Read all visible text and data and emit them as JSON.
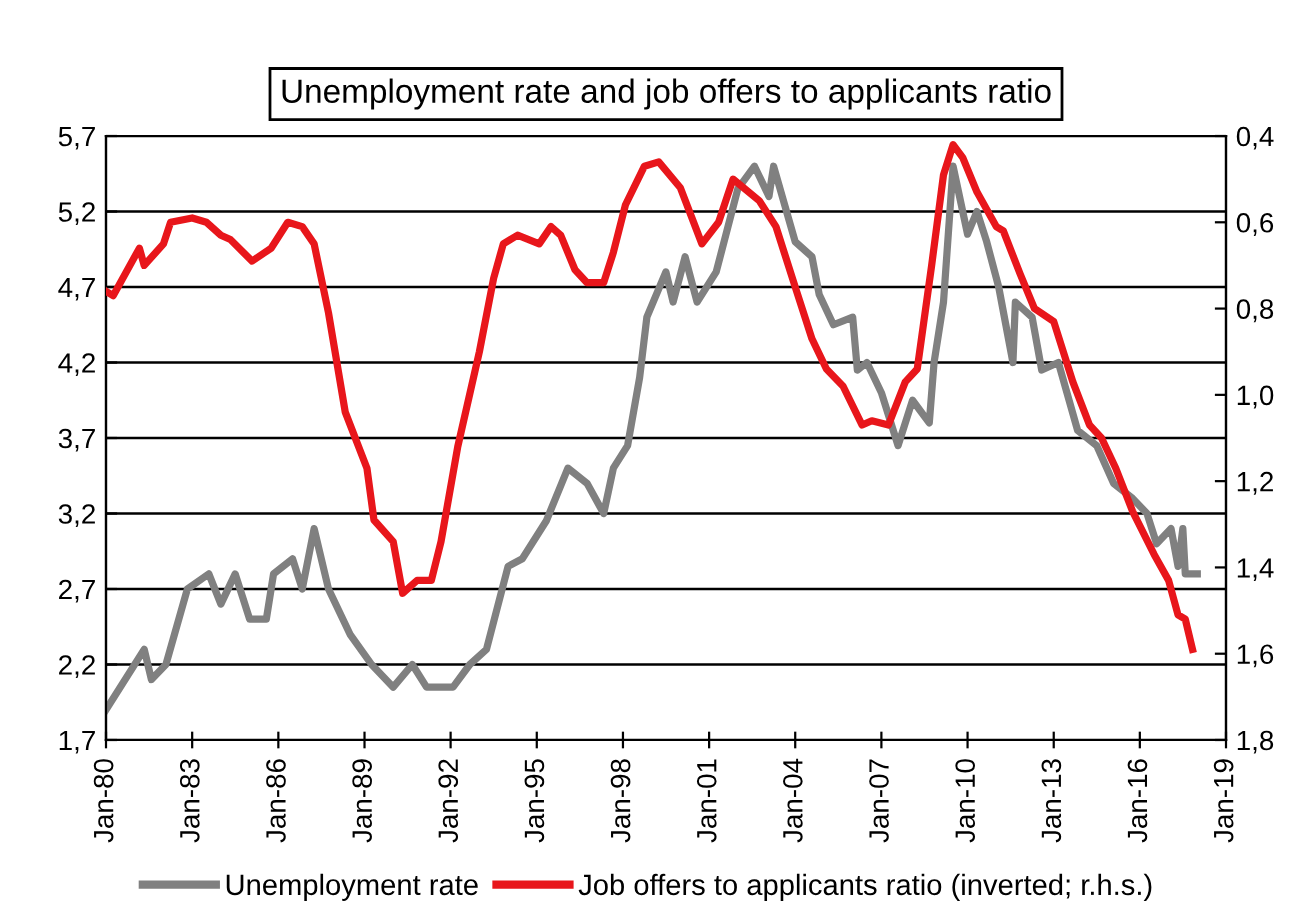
{
  "chart_data": {
    "type": "line",
    "title": "Unemployment rate and job offers to applicants ratio",
    "xlim": [
      "1980-01",
      "2019-01"
    ],
    "xticks": [
      {
        "value": "1980-01",
        "label": "Jan-80"
      },
      {
        "value": "1983-01",
        "label": "Jan-83"
      },
      {
        "value": "1986-01",
        "label": "Jan-86"
      },
      {
        "value": "1989-01",
        "label": "Jan-89"
      },
      {
        "value": "1992-01",
        "label": "Jan-92"
      },
      {
        "value": "1995-01",
        "label": "Jan-95"
      },
      {
        "value": "1998-01",
        "label": "Jan-98"
      },
      {
        "value": "2001-01",
        "label": "Jan-01"
      },
      {
        "value": "2004-01",
        "label": "Jan-04"
      },
      {
        "value": "2007-01",
        "label": "Jan-07"
      },
      {
        "value": "2010-01",
        "label": "Jan-10"
      },
      {
        "value": "2013-01",
        "label": "Jan-13"
      },
      {
        "value": "2016-01",
        "label": "Jan-16"
      },
      {
        "value": "2019-01",
        "label": "Jan-19"
      }
    ],
    "ylim": [
      1.7,
      5.7
    ],
    "yticks": [
      {
        "value": 1.7,
        "label": "1,7"
      },
      {
        "value": 2.2,
        "label": "2,2"
      },
      {
        "value": 2.7,
        "label": "2,7"
      },
      {
        "value": 3.2,
        "label": "3,2"
      },
      {
        "value": 3.7,
        "label": "3,7"
      },
      {
        "value": 4.2,
        "label": "4,2"
      },
      {
        "value": 4.7,
        "label": "4,7"
      },
      {
        "value": 5.2,
        "label": "5,2"
      },
      {
        "value": 5.7,
        "label": "5,7"
      }
    ],
    "y2lim": [
      1.8,
      0.4
    ],
    "y2ticks": [
      {
        "value": 0.4,
        "label": "0,4"
      },
      {
        "value": 0.6,
        "label": "0,6"
      },
      {
        "value": 0.8,
        "label": "0,8"
      },
      {
        "value": 1.0,
        "label": "1,0"
      },
      {
        "value": 1.2,
        "label": "1,2"
      },
      {
        "value": 1.4,
        "label": "1,4"
      },
      {
        "value": 1.6,
        "label": "1,6"
      },
      {
        "value": 1.8,
        "label": "1,8"
      }
    ],
    "grid": "y",
    "legend": "bottom",
    "marker": "none",
    "line_style": "solid",
    "series": [
      {
        "name": "Unemployment rate",
        "color": "#808080",
        "x": [
          "1980-01",
          "1981-05",
          "1981-08",
          "1982-02",
          "1982-11",
          "1983-08",
          "1984-01",
          "1984-07",
          "1985-01",
          "1985-08",
          "1985-11",
          "1986-07",
          "1986-11",
          "1987-04",
          "1987-10",
          "1988-07",
          "1989-04",
          "1990-01",
          "1990-09",
          "1991-03",
          "1992-02",
          "1992-09",
          "1993-04",
          "1994-01",
          "1994-07",
          "1995-05",
          "1996-02",
          "1996-10",
          "1997-05",
          "1997-09",
          "1998-03",
          "1998-08",
          "1998-11",
          "1999-07",
          "1999-10",
          "2000-03",
          "2000-08",
          "2001-04",
          "2002-01",
          "2002-08",
          "2003-02",
          "2003-04",
          "2004-01",
          "2004-08",
          "2004-11",
          "2005-05",
          "2006-01",
          "2006-03",
          "2006-07",
          "2007-01",
          "2007-08",
          "2008-02",
          "2008-09",
          "2008-11",
          "2009-03",
          "2009-07",
          "2010-01",
          "2010-05",
          "2010-09",
          "2011-02",
          "2011-08",
          "2011-09",
          "2012-04",
          "2012-08",
          "2013-03",
          "2013-11",
          "2014-07",
          "2015-02",
          "2015-10",
          "2016-04",
          "2016-08",
          "2017-02",
          "2017-05",
          "2017-07",
          "2017-08",
          "2018-01"
        ],
        "values": [
          1.9,
          2.3,
          2.1,
          2.2,
          2.7,
          2.8,
          2.6,
          2.8,
          2.5,
          2.5,
          2.8,
          2.9,
          2.7,
          3.1,
          2.7,
          2.4,
          2.2,
          2.05,
          2.2,
          2.05,
          2.05,
          2.2,
          2.3,
          2.85,
          2.9,
          3.15,
          3.5,
          3.4,
          3.2,
          3.5,
          3.65,
          4.1,
          4.5,
          4.8,
          4.6,
          4.9,
          4.6,
          4.8,
          5.35,
          5.5,
          5.3,
          5.5,
          5.0,
          4.9,
          4.65,
          4.45,
          4.5,
          4.15,
          4.2,
          4.0,
          3.65,
          3.95,
          3.8,
          4.2,
          4.6,
          5.5,
          5.05,
          5.2,
          5.0,
          4.7,
          4.2,
          4.6,
          4.5,
          4.15,
          4.2,
          3.75,
          3.65,
          3.4,
          3.3,
          3.2,
          3.0,
          3.1,
          2.85,
          3.1,
          2.8,
          2.8
        ]
      },
      {
        "name": "Job offers to applicants ratio (inverted; r.h.s.)",
        "color": "#e8161b",
        "axis": "y2",
        "x": [
          "1980-01",
          "1980-04",
          "1981-03",
          "1981-05",
          "1982-01",
          "1982-04",
          "1983-01",
          "1983-07",
          "1984-01",
          "1984-05",
          "1985-02",
          "1985-10",
          "1986-05",
          "1986-11",
          "1987-04",
          "1987-10",
          "1988-05",
          "1989-02",
          "1989-05",
          "1990-01",
          "1990-05",
          "1990-11",
          "1991-05",
          "1991-09",
          "1992-04",
          "1993-01",
          "1993-07",
          "1993-11",
          "1994-05",
          "1995-02",
          "1995-07",
          "1995-11",
          "1996-05",
          "1996-10",
          "1997-05",
          "1997-09",
          "1998-02",
          "1998-10",
          "1999-04",
          "2000-01",
          "2000-10",
          "2001-05",
          "2001-11",
          "2002-10",
          "2003-05",
          "2004-01",
          "2004-08",
          "2005-02",
          "2005-09",
          "2006-05",
          "2006-09",
          "2007-04",
          "2007-11",
          "2008-04",
          "2008-10",
          "2009-03",
          "2009-07",
          "2009-11",
          "2010-05",
          "2011-01",
          "2011-04",
          "2011-11",
          "2012-05",
          "2013-01",
          "2013-09",
          "2014-04",
          "2014-09",
          "2015-03",
          "2015-10",
          "2016-07",
          "2017-01",
          "2017-05",
          "2017-08",
          "2017-11"
        ],
        "values": [
          0.76,
          0.77,
          0.66,
          0.7,
          0.65,
          0.6,
          0.59,
          0.6,
          0.63,
          0.64,
          0.69,
          0.66,
          0.6,
          0.61,
          0.65,
          0.81,
          1.04,
          1.17,
          1.29,
          1.34,
          1.46,
          1.43,
          1.43,
          1.34,
          1.12,
          0.9,
          0.73,
          0.65,
          0.63,
          0.65,
          0.61,
          0.63,
          0.71,
          0.74,
          0.74,
          0.67,
          0.56,
          0.47,
          0.46,
          0.52,
          0.65,
          0.6,
          0.5,
          0.55,
          0.61,
          0.75,
          0.87,
          0.94,
          0.98,
          1.07,
          1.06,
          1.07,
          0.97,
          0.94,
          0.7,
          0.49,
          0.42,
          0.45,
          0.53,
          0.61,
          0.62,
          0.72,
          0.8,
          0.83,
          0.97,
          1.07,
          1.1,
          1.17,
          1.27,
          1.37,
          1.43,
          1.51,
          1.52,
          1.59
        ]
      }
    ]
  }
}
